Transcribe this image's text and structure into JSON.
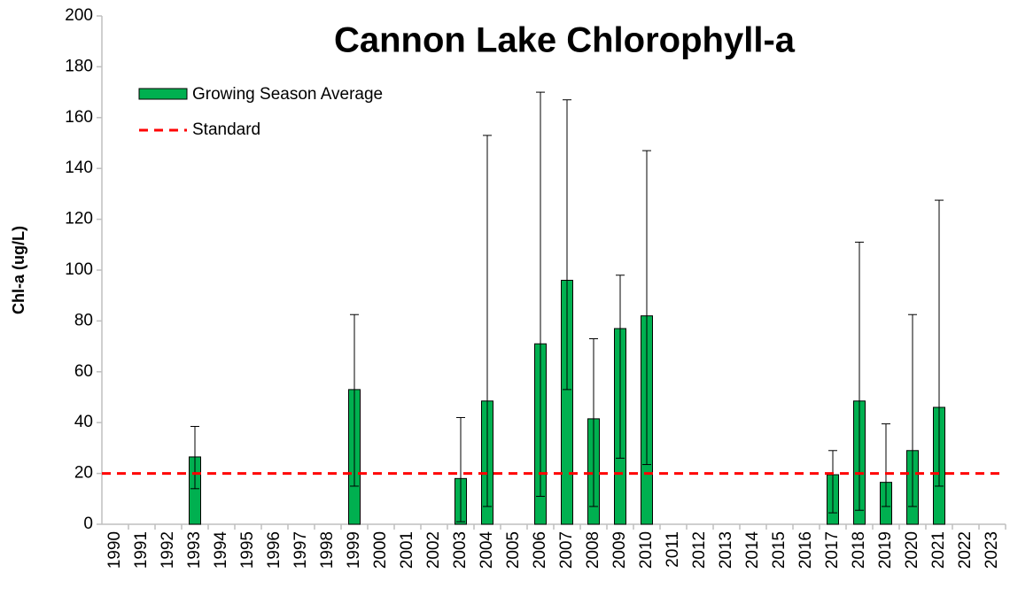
{
  "chart_data": {
    "type": "bar",
    "title": "Cannon Lake Chlorophyll-a",
    "y_label": "Chl-a (ug/L)",
    "categories": [
      "1990",
      "1991",
      "1992",
      "1993",
      "1994",
      "1995",
      "1996",
      "1997",
      "1998",
      "1999",
      "2000",
      "2001",
      "2002",
      "2003",
      "2004",
      "2005",
      "2006",
      "2007",
      "2008",
      "2009",
      "2010",
      "2011",
      "2012",
      "2013",
      "2014",
      "2015",
      "2016",
      "2017",
      "2018",
      "2019",
      "2020",
      "2021",
      "2022",
      "2023"
    ],
    "series": [
      {
        "name": "Growing Season Average",
        "color": "#00b050",
        "values": [
          null,
          null,
          null,
          26.5,
          null,
          null,
          null,
          null,
          null,
          53,
          null,
          null,
          null,
          18,
          48.5,
          null,
          71,
          96,
          41.5,
          77,
          82,
          null,
          null,
          null,
          null,
          null,
          null,
          19.5,
          48.5,
          16.5,
          29,
          46,
          null,
          null
        ],
        "low": [
          null,
          null,
          null,
          14,
          null,
          null,
          null,
          null,
          null,
          15,
          null,
          null,
          null,
          1,
          7,
          null,
          11,
          53,
          7,
          26,
          23.5,
          null,
          null,
          null,
          null,
          null,
          null,
          4.5,
          5.5,
          7,
          7,
          15,
          null,
          null
        ],
        "high": [
          null,
          null,
          null,
          38.5,
          null,
          null,
          null,
          null,
          null,
          82.5,
          null,
          null,
          null,
          42,
          153,
          null,
          170,
          167,
          73,
          98,
          147,
          null,
          null,
          null,
          null,
          null,
          null,
          29,
          111,
          39.5,
          82.5,
          127.5,
          null,
          null
        ]
      }
    ],
    "standard": {
      "name": "Standard",
      "value": 20,
      "color": "#ff0000"
    },
    "ylim": [
      0,
      200
    ],
    "yticks": [
      0,
      20,
      40,
      60,
      80,
      100,
      120,
      140,
      160,
      180,
      200
    ]
  }
}
